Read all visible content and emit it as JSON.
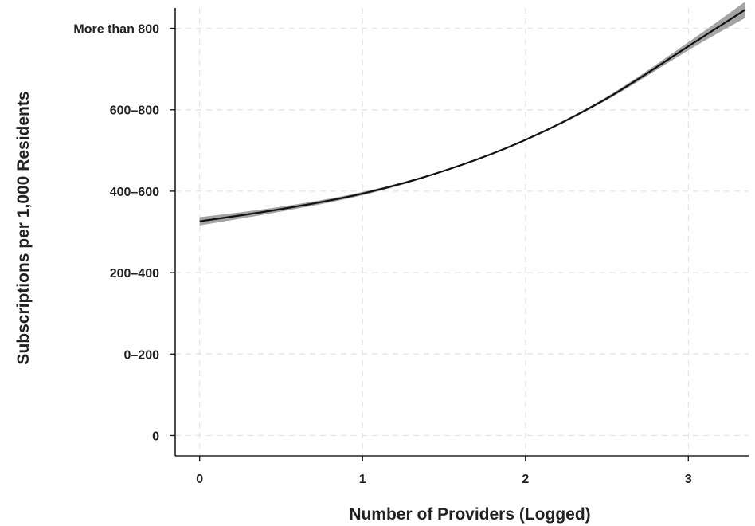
{
  "chart_data": {
    "type": "line",
    "title": "",
    "xlabel": "Number of Providers (Logged)",
    "ylabel": "Subscriptions per 1,000 Residents",
    "xlim": [
      -0.15,
      3.37
    ],
    "ylim": [
      -0.25,
      5.25
    ],
    "x_ticks": [
      {
        "value": 0,
        "label": "0"
      },
      {
        "value": 1,
        "label": "1"
      },
      {
        "value": 2,
        "label": "2"
      },
      {
        "value": 3,
        "label": "3"
      }
    ],
    "y_ticks": [
      {
        "value": 0,
        "label": "0"
      },
      {
        "value": 1,
        "label": "0–200"
      },
      {
        "value": 2,
        "label": "200–400"
      },
      {
        "value": 3,
        "label": "400–600"
      },
      {
        "value": 4,
        "label": "600–800"
      },
      {
        "value": 5,
        "label": "More than 800"
      }
    ],
    "grid": true,
    "legend": "none",
    "series": [
      {
        "x": [
          0,
          0.5,
          1.0,
          1.5,
          2.0,
          2.5,
          3.0,
          3.35
        ],
        "y": [
          2.63,
          2.78,
          2.97,
          3.25,
          3.63,
          4.14,
          4.78,
          5.23
        ],
        "ci_lower": [
          2.58,
          2.75,
          2.95,
          3.24,
          3.62,
          4.12,
          4.73,
          5.13
        ],
        "ci_upper": [
          2.68,
          2.81,
          2.99,
          3.26,
          3.64,
          4.16,
          4.83,
          5.33
        ]
      }
    ],
    "colors": {
      "line": "#111111",
      "band": "#9a9a9a",
      "grid": "#e3e3e3",
      "axis": "#222222"
    }
  }
}
